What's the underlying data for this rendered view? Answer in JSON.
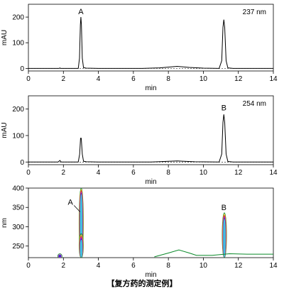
{
  "chart_data": [
    {
      "type": "line",
      "xlabel": "min",
      "ylabel": "mAU",
      "annotation": "237 nm",
      "xlim": [
        0,
        14
      ],
      "ylim": [
        -10,
        250
      ],
      "xticks": [
        0,
        2,
        4,
        6,
        8,
        10,
        12,
        14
      ],
      "yticks": [
        0,
        100,
        200
      ],
      "peak_labels": [
        {
          "text": "A",
          "x": 3.0,
          "y": 200
        }
      ],
      "series": [
        {
          "points": [
            [
              0,
              0
            ],
            [
              1.75,
              0
            ],
            [
              1.8,
              2
            ],
            [
              1.85,
              0
            ],
            [
              2.85,
              0
            ],
            [
              2.92,
              40
            ],
            [
              2.97,
              170
            ],
            [
              3.0,
              200
            ],
            [
              3.03,
              170
            ],
            [
              3.08,
              40
            ],
            [
              3.15,
              3
            ],
            [
              3.3,
              1
            ],
            [
              4.0,
              0
            ],
            [
              6.5,
              0
            ],
            [
              7.5,
              2
            ],
            [
              8.5,
              8
            ],
            [
              9.2,
              4
            ],
            [
              10.0,
              1
            ],
            [
              10.9,
              0
            ],
            [
              11.05,
              30
            ],
            [
              11.12,
              160
            ],
            [
              11.17,
              190
            ],
            [
              11.22,
              160
            ],
            [
              11.3,
              30
            ],
            [
              11.4,
              2
            ],
            [
              11.7,
              0
            ],
            [
              14,
              0
            ]
          ]
        }
      ]
    },
    {
      "type": "line",
      "xlabel": "min",
      "ylabel": "mAU",
      "annotation": "254 nm",
      "xlim": [
        0,
        14
      ],
      "ylim": [
        -10,
        250
      ],
      "xticks": [
        0,
        2,
        4,
        6,
        8,
        10,
        12,
        14
      ],
      "yticks": [
        0,
        100,
        200
      ],
      "peak_labels": [
        {
          "text": "B",
          "x": 11.17,
          "y": 185
        }
      ],
      "series": [
        {
          "points": [
            [
              0,
              0
            ],
            [
              1.7,
              0
            ],
            [
              1.8,
              6
            ],
            [
              1.88,
              0
            ],
            [
              2.85,
              0
            ],
            [
              2.93,
              30
            ],
            [
              2.98,
              90
            ],
            [
              3.02,
              90
            ],
            [
              3.08,
              30
            ],
            [
              3.15,
              3
            ],
            [
              3.3,
              1
            ],
            [
              4.0,
              0
            ],
            [
              7.0,
              0
            ],
            [
              8.5,
              4
            ],
            [
              9.5,
              1
            ],
            [
              10.9,
              0
            ],
            [
              11.05,
              30
            ],
            [
              11.12,
              150
            ],
            [
              11.17,
              180
            ],
            [
              11.22,
              150
            ],
            [
              11.3,
              30
            ],
            [
              11.4,
              2
            ],
            [
              11.7,
              0
            ],
            [
              14,
              0
            ]
          ]
        }
      ]
    },
    {
      "type": "heatmap",
      "xlabel": "min",
      "ylabel": "nm",
      "xlim": [
        0,
        14
      ],
      "ylim": [
        220,
        400
      ],
      "xticks": [
        0,
        2,
        4,
        6,
        8,
        10,
        12,
        14
      ],
      "yticks": [
        250,
        300,
        350,
        400
      ],
      "peak_labels": [
        {
          "text": "A",
          "x": 2.4,
          "y": 357
        },
        {
          "text": "B",
          "x": 11.17,
          "y": 343
        }
      ],
      "contour_peaks": [
        {
          "x": 3.02,
          "y_range": [
            220,
            400
          ],
          "center": 360
        },
        {
          "x": 3.02,
          "y_range": [
            220,
            282
          ],
          "center": 245
        },
        {
          "x": 11.2,
          "y_range": [
            220,
            336
          ],
          "center": 295
        }
      ],
      "baseline_contour": [
        [
          7.2,
          222
        ],
        [
          8.0,
          232
        ],
        [
          8.6,
          240
        ],
        [
          9.2,
          232
        ],
        [
          9.6,
          226
        ],
        [
          10.5,
          226
        ],
        [
          11.0,
          228
        ],
        [
          11.5,
          230
        ],
        [
          12.5,
          229
        ],
        [
          14,
          229
        ]
      ],
      "colors": [
        "#0a8a2a",
        "#f0c020",
        "#e03030",
        "#c020c0",
        "#3030d0",
        "#40d0e0"
      ]
    }
  ],
  "caption": "【复方药的测定例】"
}
